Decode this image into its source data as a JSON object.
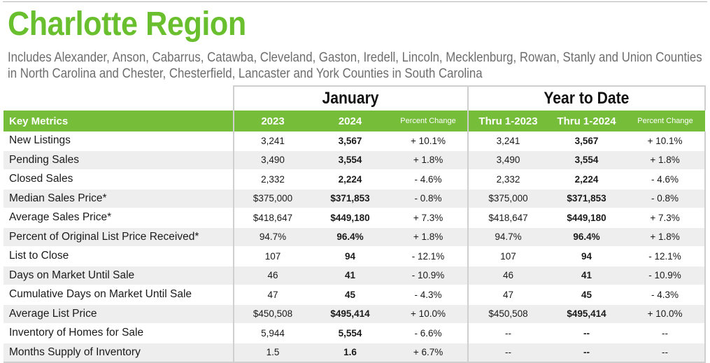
{
  "title": "Charlotte Region",
  "subtitle_lines": [
    "Includes Alexander, Anson, Cabarrus, Catawba, Cleveland, Gaston, Iredell, Lincoln, Mecklenburg, Rowan, Stanly and Union Counties",
    "in North Carolina and Chester, Chesterfield, Lancaster and York Counties in South Carolina"
  ],
  "groups": {
    "january": "January",
    "ytd": "Year to Date"
  },
  "headers": {
    "metric": "Key Metrics",
    "y2023": "2023",
    "y2024": "2024",
    "pct": "Percent Change",
    "thru2023": "Thru 1-2023",
    "thru2024": "Thru 1-2024",
    "pct_ytd": "Percent Change"
  },
  "rows": [
    {
      "metric": "New Listings",
      "y2023": "3,241",
      "y2024": "3,567",
      "pct": "+ 10.1%",
      "thru2023": "3,241",
      "thru2024": "3,567",
      "pct_ytd": "+ 10.1%"
    },
    {
      "metric": "Pending Sales",
      "y2023": "3,490",
      "y2024": "3,554",
      "pct": "+ 1.8%",
      "thru2023": "3,490",
      "thru2024": "3,554",
      "pct_ytd": "+ 1.8%"
    },
    {
      "metric": "Closed Sales",
      "y2023": "2,332",
      "y2024": "2,224",
      "pct": "- 4.6%",
      "thru2023": "2,332",
      "thru2024": "2,224",
      "pct_ytd": "- 4.6%"
    },
    {
      "metric": "Median Sales Price*",
      "y2023": "$375,000",
      "y2024": "$371,853",
      "pct": "- 0.8%",
      "thru2023": "$375,000",
      "thru2024": "$371,853",
      "pct_ytd": "- 0.8%"
    },
    {
      "metric": "Average Sales Price*",
      "y2023": "$418,647",
      "y2024": "$449,180",
      "pct": "+ 7.3%",
      "thru2023": "$418,647",
      "thru2024": "$449,180",
      "pct_ytd": "+ 7.3%"
    },
    {
      "metric": "Percent of Original List Price Received*",
      "y2023": "94.7%",
      "y2024": "96.4%",
      "pct": "+ 1.8%",
      "thru2023": "94.7%",
      "thru2024": "96.4%",
      "pct_ytd": "+ 1.8%"
    },
    {
      "metric": "List to Close",
      "y2023": "107",
      "y2024": "94",
      "pct": "- 12.1%",
      "thru2023": "107",
      "thru2024": "94",
      "pct_ytd": "- 12.1%"
    },
    {
      "metric": "Days on Market Until Sale",
      "y2023": "46",
      "y2024": "41",
      "pct": "- 10.9%",
      "thru2023": "46",
      "thru2024": "41",
      "pct_ytd": "- 10.9%"
    },
    {
      "metric": "Cumulative Days on Market Until Sale",
      "y2023": "47",
      "y2024": "45",
      "pct": "- 4.3%",
      "thru2023": "47",
      "thru2024": "45",
      "pct_ytd": "- 4.3%"
    },
    {
      "metric": "Average List Price",
      "y2023": "$450,508",
      "y2024": "$495,414",
      "pct": "+ 10.0%",
      "thru2023": "$450,508",
      "thru2024": "$495,414",
      "pct_ytd": "+ 10.0%"
    },
    {
      "metric": "Inventory of Homes for Sale",
      "y2023": "5,944",
      "y2024": "5,554",
      "pct": "- 6.6%",
      "thru2023": "--",
      "thru2024": "--",
      "pct_ytd": "--"
    },
    {
      "metric": "Months Supply of Inventory",
      "y2023": "1.5",
      "y2024": "1.6",
      "pct": "+ 6.7%",
      "thru2023": "--",
      "thru2024": "--",
      "pct_ytd": "--"
    }
  ],
  "colors": {
    "title": "#6abf2e",
    "header_bar": "#76bd3a",
    "subtitle": "#6d6d6d",
    "row_stripe": "#eeeeee"
  }
}
